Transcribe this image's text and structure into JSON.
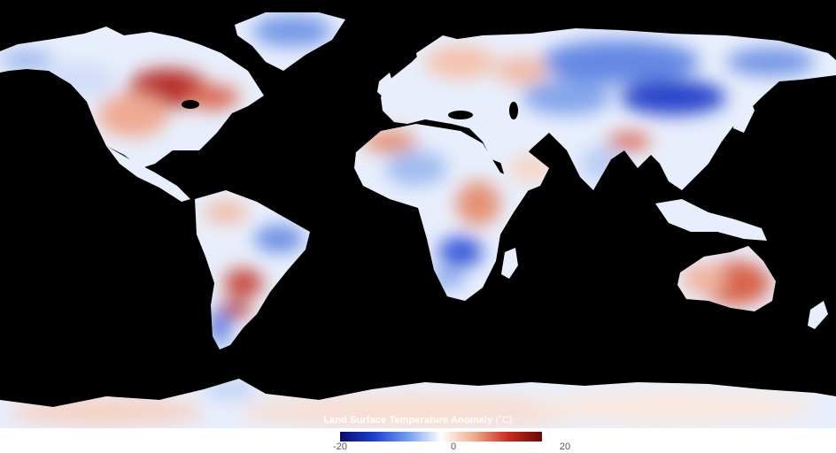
{
  "legend": {
    "title": "Land Surface Temperature Anomaly",
    "unit": "(˚C)",
    "min_label": "-20",
    "mid_label": "0",
    "max_label": "20",
    "range": [
      -20,
      20
    ],
    "colors": [
      "#0a0a6e",
      "#1c3fd6",
      "#6f9cf0",
      "#ffffff",
      "#f2a98c",
      "#cc2a1c",
      "#6a0808"
    ]
  },
  "map": {
    "projection": "equirectangular",
    "ocean_color": "#000000"
  }
}
